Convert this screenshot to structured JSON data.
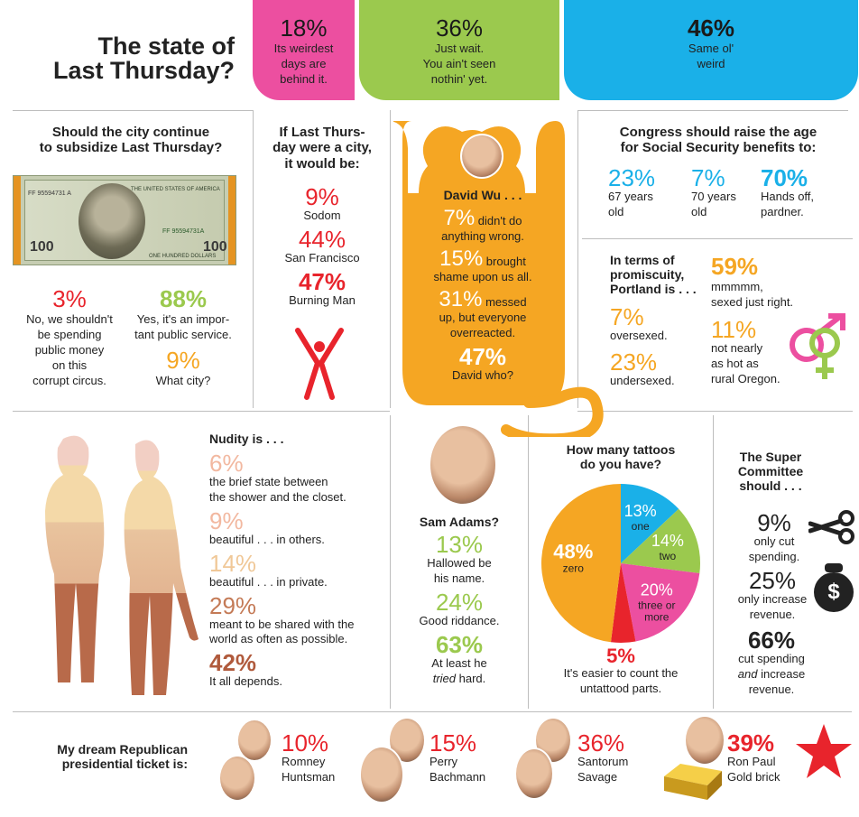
{
  "colors": {
    "pink": "#ec4fa0",
    "green": "#9bc94e",
    "blue": "#1ab0e8",
    "red": "#e8242c",
    "orange": "#f5a623",
    "peach": "#e8a07a"
  },
  "header": {
    "title_line1": "The state of",
    "title_line2": "Last Thursday?",
    "bubbles": [
      {
        "pct": "18%",
        "text": [
          "Its weirdest",
          "days are",
          "behind it."
        ]
      },
      {
        "pct": "36%",
        "text": [
          "Just wait.",
          "You ain't seen",
          "nothin' yet."
        ]
      },
      {
        "pct": "46%",
        "text": [
          "Same ol'",
          "weird"
        ]
      }
    ]
  },
  "subsidize": {
    "question": [
      "Should the city continue",
      "to subsidize Last Thursday?"
    ],
    "bill": {
      "serial": "FF 95594731 A",
      "serial2": "FF 95594731A",
      "country": "THE UNITED STATES OF AMERICA",
      "denom": "100",
      "words": "ONE HUNDRED DOLLARS"
    },
    "answers": [
      {
        "pct": "3%",
        "text": [
          "No, we shouldn't",
          "be spending",
          "public money",
          "on this",
          "corrupt circus."
        ]
      },
      {
        "pct": "88%",
        "text": [
          "Yes, it's an impor-",
          "tant public service."
        ]
      },
      {
        "pct": "9%",
        "text": [
          "What city?"
        ]
      }
    ]
  },
  "city": {
    "question": [
      "If Last Thurs-",
      "day were a city,",
      "it would be:"
    ],
    "answers": [
      {
        "pct": "9%",
        "label": "Sodom"
      },
      {
        "pct": "44%",
        "label": "San Francisco"
      },
      {
        "pct": "47%",
        "label": "Burning Man"
      }
    ]
  },
  "wu": {
    "name": "David Wu . . .",
    "answers": [
      {
        "pct": "7%",
        "text": [
          " didn't do",
          "anything wrong."
        ]
      },
      {
        "pct": "15%",
        "text": [
          " brought",
          "shame upon us all."
        ]
      },
      {
        "pct": "31%",
        "text": [
          " messed",
          "up, but everyone",
          "overreacted."
        ]
      },
      {
        "pct": "47%",
        "text": [
          "David who?"
        ]
      }
    ]
  },
  "congress": {
    "question": [
      "Congress should raise the age",
      "for Social Security benefits to:"
    ],
    "answers": [
      {
        "pct": "23%",
        "text": [
          "67 years",
          "old"
        ]
      },
      {
        "pct": "7%",
        "text": [
          "70 years",
          "old"
        ]
      },
      {
        "pct": "70%",
        "text": [
          "Hands off,",
          "pardner."
        ]
      }
    ]
  },
  "promiscuity": {
    "question": [
      "In terms of",
      "promiscuity,",
      "Portland is . . ."
    ],
    "answers": [
      {
        "pct": "7%",
        "text": [
          "oversexed."
        ]
      },
      {
        "pct": "23%",
        "text": [
          "undersexed."
        ]
      },
      {
        "pct": "59%",
        "text": [
          "mmmmm,",
          "sexed just right."
        ]
      },
      {
        "pct": "11%",
        "text": [
          "not nearly",
          "as hot as",
          "rural Oregon."
        ]
      }
    ]
  },
  "nudity": {
    "question": "Nudity is . . .",
    "answers": [
      {
        "pct": "6%",
        "text": [
          "the brief state between",
          "the shower and the closet."
        ]
      },
      {
        "pct": "9%",
        "text": [
          "beautiful . . . in others."
        ]
      },
      {
        "pct": "14%",
        "text": [
          "beautiful . . . in private."
        ]
      },
      {
        "pct": "29%",
        "text": [
          "meant to be shared with the",
          "world as often as possible."
        ]
      },
      {
        "pct": "42%",
        "text": [
          "It all depends."
        ]
      }
    ]
  },
  "adams": {
    "question": "Sam Adams?",
    "answers": [
      {
        "pct": "13%",
        "text": [
          "Hallowed be",
          "his name."
        ]
      },
      {
        "pct": "24%",
        "text": [
          "Good riddance."
        ]
      },
      {
        "pct": "63%",
        "text_pre": "At least he",
        "text_em": "tried",
        "text_post": " hard."
      }
    ]
  },
  "supercommittee": {
    "question": [
      "The Super",
      "Committee",
      "should . . ."
    ],
    "answers": [
      {
        "pct": "9%",
        "text": [
          "only cut",
          "spending."
        ]
      },
      {
        "pct": "25%",
        "text": [
          "only increase",
          "revenue."
        ]
      },
      {
        "pct": "66%",
        "text_a": "cut spending",
        "text_em": "and",
        "text_b": " increase",
        "text_c": "revenue."
      }
    ],
    "bag_symbol": "$"
  },
  "republican": {
    "question": [
      "My dream Republican",
      "presidential ticket is:"
    ],
    "answers": [
      {
        "pct": "10%",
        "text": [
          "Romney",
          "Huntsman"
        ]
      },
      {
        "pct": "15%",
        "text": [
          "Perry",
          "Bachmann"
        ]
      },
      {
        "pct": "36%",
        "text": [
          "Santorum",
          "Savage"
        ]
      },
      {
        "pct": "39%",
        "text": [
          "Ron Paul",
          "Gold brick"
        ]
      }
    ]
  },
  "chart_data": [
    {
      "type": "pie",
      "title": [
        "How many tattoos",
        "do you have?"
      ],
      "slices": [
        {
          "label": "one",
          "value": 13,
          "display": "13%",
          "color": "#1ab0e8"
        },
        {
          "label": "two",
          "value": 14,
          "display": "14%",
          "color": "#9bc94e"
        },
        {
          "label": "three or more",
          "value": 20,
          "display": "20%",
          "color": "#ec4fa0"
        },
        {
          "label": "It's easier to count the untattood parts.",
          "value": 5,
          "display": "5%",
          "color": "#e8242c"
        },
        {
          "label": "zero",
          "value": 48,
          "display": "48%",
          "color": "#f5a623"
        }
      ],
      "outside_label": {
        "pct": "5%",
        "text": [
          "It's easier to count the",
          "untattood parts."
        ]
      }
    }
  ]
}
